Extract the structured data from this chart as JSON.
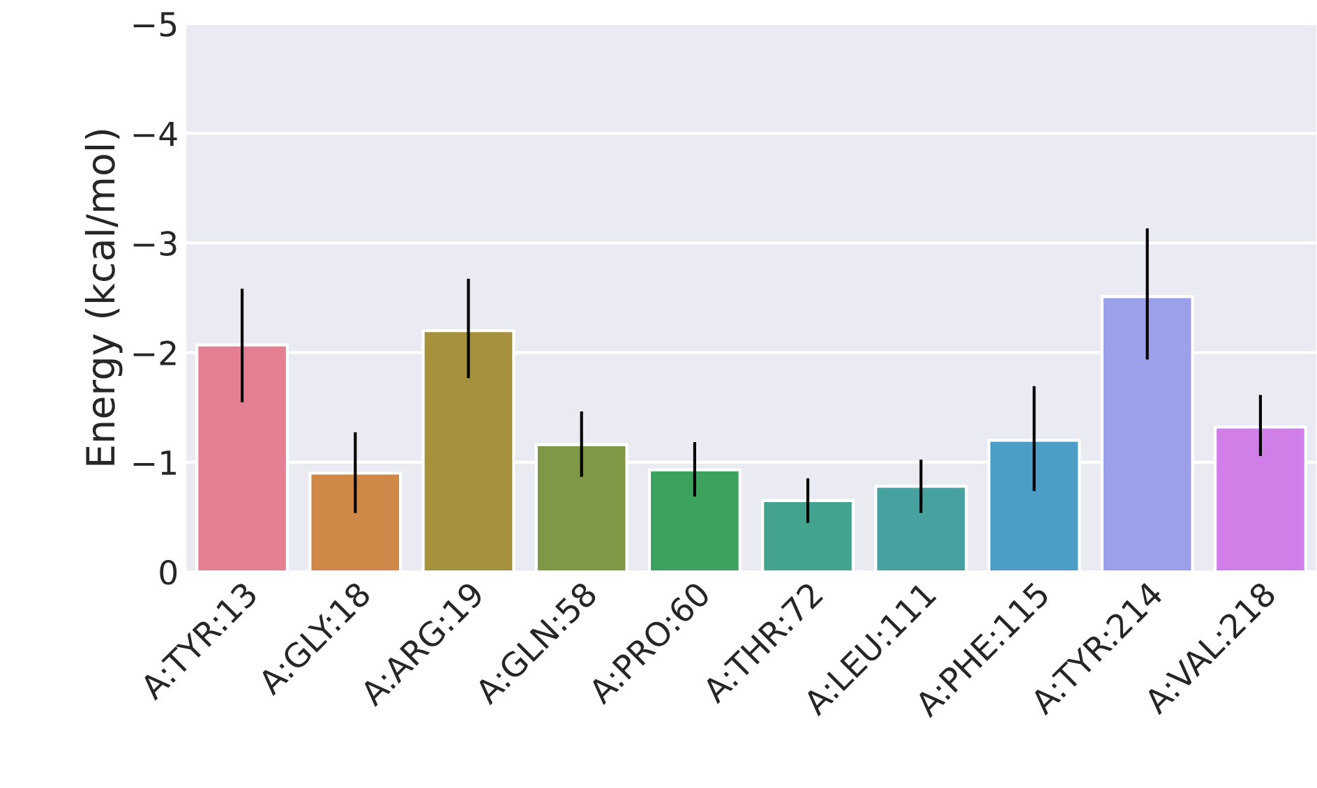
{
  "chart_data": {
    "type": "bar",
    "ylabel": "Energy (kcal/mol)",
    "categories": [
      "A:TYR:13",
      "A:GLY:18",
      "A:ARG:19",
      "A:GLN:58",
      "A:PRO:60",
      "A:THR:72",
      "A:LEU:111",
      "A:PHE:115",
      "A:TYR:214",
      "A:VAL:218"
    ],
    "values": [
      -2.07,
      -0.9,
      -2.2,
      -1.16,
      -0.93,
      -0.65,
      -0.78,
      -1.2,
      -2.51,
      -1.32
    ],
    "errors": [
      [
        -2.57,
        -1.56
      ],
      [
        -1.26,
        -0.55
      ],
      [
        -2.66,
        -1.78
      ],
      [
        -1.45,
        -0.88
      ],
      [
        -1.17,
        -0.7
      ],
      [
        -0.84,
        -0.46
      ],
      [
        -1.01,
        -0.55
      ],
      [
        -1.68,
        -0.75
      ],
      [
        -3.12,
        -1.95
      ],
      [
        -1.6,
        -1.07
      ]
    ],
    "colors": [
      "#e58092",
      "#cf8848",
      "#a6913f",
      "#7f9845",
      "#3ea25f",
      "#44a38e",
      "#47a19f",
      "#4d9ec6",
      "#9c9fe9",
      "#d07ee8"
    ],
    "ylim": [
      0,
      -5
    ],
    "yticks": [
      {
        "value": 0,
        "label": "0"
      },
      {
        "value": -1,
        "label": "−1"
      },
      {
        "value": -2,
        "label": "−2"
      },
      {
        "value": -3,
        "label": "−3"
      },
      {
        "value": -4,
        "label": "−4"
      },
      {
        "value": -5,
        "label": "−5"
      }
    ],
    "grid": "y"
  }
}
